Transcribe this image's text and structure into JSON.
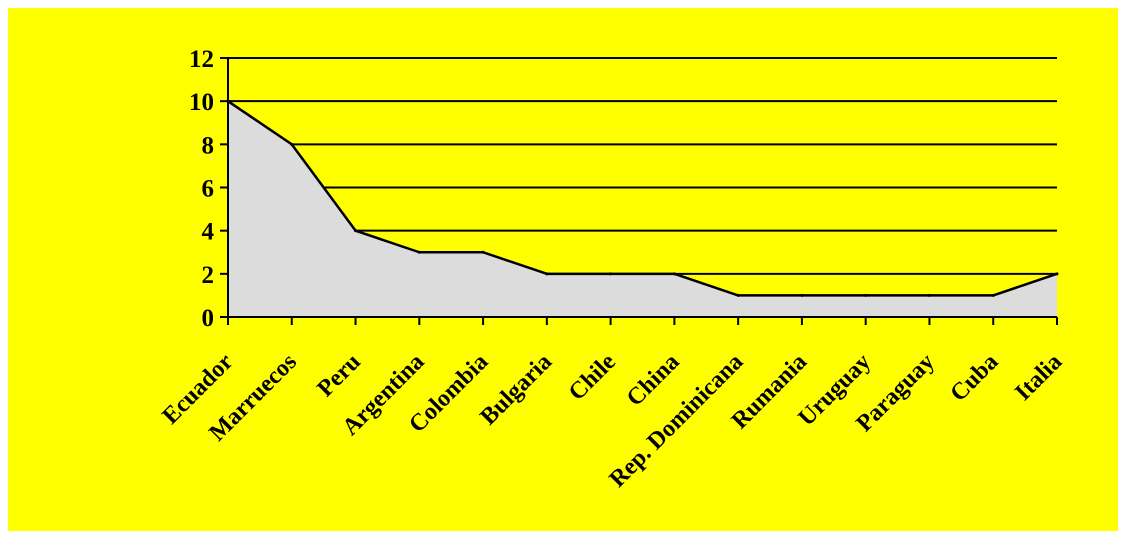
{
  "chart_data": {
    "type": "area",
    "categories": [
      "Ecuador",
      "Marruecos",
      "Peru",
      "Argentina",
      "Colombia",
      "Bulgaria",
      "Chile",
      "China",
      "Rep. Dominicana",
      "Rumania",
      "Uruguay",
      "Paraguay",
      "Cuba",
      "Italia"
    ],
    "values": [
      10,
      8,
      4,
      3,
      3,
      2,
      2,
      2,
      1,
      1,
      1,
      1,
      1,
      2
    ],
    "yticks": [
      "0",
      "2",
      "4",
      "6",
      "8",
      "10",
      "12"
    ],
    "ylim": [
      0,
      12
    ],
    "grid": true,
    "legend": "none",
    "title": "",
    "xlabel": "",
    "ylabel": "",
    "colors": {
      "background": "#ffff00",
      "area_fill": "#dcdcdc",
      "line": "#000000",
      "grid": "#000000"
    }
  }
}
